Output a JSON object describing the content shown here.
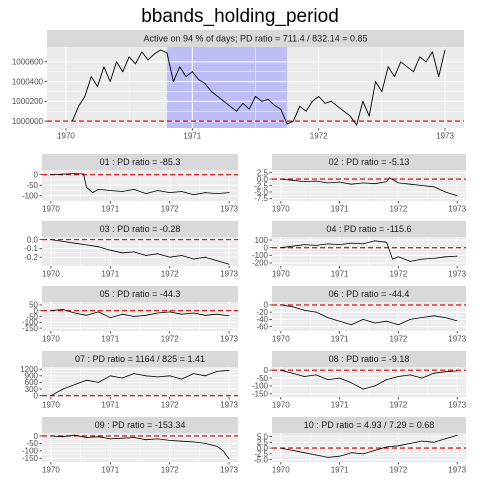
{
  "page_title": "bbands_holding_period",
  "colors": {
    "panel_bg": "#ebebeb",
    "strip_bg": "#d9d9d9",
    "grid_major": "#ffffff",
    "series": "#000000",
    "zero_line": "#cc0000",
    "highlight": "#9999ff"
  },
  "chart_data": [
    {
      "id": "main",
      "type": "line",
      "strip": "Active on 94 % of days; PD ratio =  711.4 / 832.14 = 0.85",
      "x_ticks": [
        "1970",
        "1971",
        "1972",
        "1973"
      ],
      "xlim": [
        1969.85,
        1973.15
      ],
      "y_ticks": [
        1000000,
        1000200,
        1000400,
        1000600
      ],
      "y_tick_labels": [
        "1000000",
        "1000200",
        "1000400",
        "1000600"
      ],
      "ylim": [
        999930,
        1000750
      ],
      "reference_y": 1000000,
      "highlight_x": [
        1970.8,
        1971.75
      ],
      "x": [
        1970.05,
        1970.1,
        1970.15,
        1970.2,
        1970.25,
        1970.3,
        1970.35,
        1970.4,
        1970.45,
        1970.5,
        1970.55,
        1970.6,
        1970.65,
        1970.7,
        1970.75,
        1970.8,
        1970.85,
        1970.9,
        1970.95,
        1971.0,
        1971.05,
        1971.1,
        1971.15,
        1971.2,
        1971.25,
        1971.3,
        1971.35,
        1971.4,
        1971.45,
        1971.5,
        1971.55,
        1971.6,
        1971.65,
        1971.7,
        1971.75,
        1971.8,
        1971.85,
        1971.9,
        1971.95,
        1972.0,
        1972.05,
        1972.1,
        1972.15,
        1972.2,
        1972.25,
        1972.3,
        1972.35,
        1972.4,
        1972.45,
        1972.5,
        1972.55,
        1972.6,
        1972.65,
        1972.7,
        1972.75,
        1972.8,
        1972.85,
        1972.9,
        1972.95,
        1973.0
      ],
      "y": [
        1000000,
        1000150,
        1000250,
        1000450,
        1000350,
        1000550,
        1000400,
        1000600,
        1000500,
        1000650,
        1000580,
        1000700,
        1000620,
        1000680,
        1000720,
        1000690,
        1000400,
        1000550,
        1000450,
        1000500,
        1000420,
        1000380,
        1000300,
        1000250,
        1000200,
        1000150,
        1000100,
        1000180,
        1000120,
        1000250,
        1000200,
        1000220,
        1000160,
        1000120,
        999970,
        1000000,
        1000150,
        1000100,
        1000200,
        1000250,
        1000180,
        1000200,
        1000150,
        1000100,
        1000050,
        999960,
        1000200,
        1000050,
        1000400,
        1000300,
        1000550,
        1000450,
        1000600,
        1000550,
        1000500,
        1000650,
        1000600,
        1000700,
        1000450,
        1000720
      ]
    },
    {
      "id": "p01",
      "type": "line",
      "strip": "01 : PD ratio =  -85.3",
      "x_ticks": [
        "1970",
        "1971",
        "1972",
        "1973"
      ],
      "xlim": [
        1969.85,
        1973.15
      ],
      "y_ticks": [
        0,
        -50,
        -100
      ],
      "y_tick_labels": [
        "0",
        "-50",
        "-100"
      ],
      "ylim": [
        -125,
        22
      ],
      "reference_y": 0,
      "x": [
        1970.0,
        1970.2,
        1970.4,
        1970.55,
        1970.6,
        1970.7,
        1970.8,
        1971.0,
        1971.2,
        1971.4,
        1971.6,
        1971.8,
        1972.0,
        1972.2,
        1972.4,
        1972.6,
        1972.8,
        1973.0
      ],
      "y": [
        0,
        2,
        5,
        3,
        -60,
        -85,
        -70,
        -75,
        -80,
        -70,
        -90,
        -75,
        -85,
        -80,
        -95,
        -85,
        -90,
        -85
      ]
    },
    {
      "id": "p02",
      "type": "line",
      "strip": "02 : PD ratio =  -5.13",
      "x_ticks": [
        "1970",
        "1971",
        "1972",
        "1973"
      ],
      "xlim": [
        1969.85,
        1973.15
      ],
      "y_ticks": [
        2.5,
        0.0,
        -2.5,
        -5.0,
        -7.5
      ],
      "y_tick_labels": [
        "2.5",
        "0.0",
        "-2.5",
        "-5.0",
        "-7.5"
      ],
      "ylim": [
        -8.5,
        3.5
      ],
      "reference_y": 0,
      "x": [
        1970.0,
        1970.2,
        1970.4,
        1970.6,
        1970.8,
        1971.0,
        1971.2,
        1971.4,
        1971.6,
        1971.8,
        1971.85,
        1972.0,
        1972.2,
        1972.4,
        1972.6,
        1972.8,
        1973.0
      ],
      "y": [
        0,
        -0.5,
        -1.0,
        -0.8,
        -1.5,
        -1.2,
        -2.0,
        -1.5,
        -1.8,
        -1.0,
        0.5,
        -1.5,
        -2.0,
        -2.5,
        -3.0,
        -5.0,
        -6.5
      ]
    },
    {
      "id": "p03",
      "type": "line",
      "strip": "03 : PD ratio =  -0.28",
      "x_ticks": [
        "1970",
        "1971",
        "1972",
        "1973"
      ],
      "xlim": [
        1969.85,
        1973.15
      ],
      "y_ticks": [
        0.0,
        -0.1,
        -0.2
      ],
      "y_tick_labels": [
        "0.0",
        "-0.1",
        "-0.2"
      ],
      "ylim": [
        -0.3,
        0.03
      ],
      "reference_y": 0,
      "x": [
        1970.0,
        1970.2,
        1970.4,
        1970.6,
        1970.8,
        1971.0,
        1971.2,
        1971.4,
        1971.6,
        1971.8,
        1972.0,
        1972.2,
        1972.4,
        1972.6,
        1972.8,
        1973.0
      ],
      "y": [
        0,
        -0.02,
        -0.04,
        -0.06,
        -0.08,
        -0.12,
        -0.15,
        -0.14,
        -0.18,
        -0.16,
        -0.2,
        -0.18,
        -0.22,
        -0.2,
        -0.24,
        -0.28
      ]
    },
    {
      "id": "p04",
      "type": "line",
      "strip": "04 : PD ratio =  -115.6",
      "x_ticks": [
        "1970",
        "1971",
        "1972",
        "1973"
      ],
      "xlim": [
        1969.85,
        1973.15
      ],
      "y_ticks": [
        100,
        0,
        -100,
        -200
      ],
      "y_tick_labels": [
        "100",
        "0",
        "-100",
        "-200"
      ],
      "ylim": [
        -240,
        140
      ],
      "reference_y": 0,
      "x": [
        1970.0,
        1970.2,
        1970.4,
        1970.6,
        1970.8,
        1971.0,
        1971.2,
        1971.4,
        1971.6,
        1971.8,
        1971.9,
        1972.0,
        1972.2,
        1972.4,
        1972.6,
        1972.8,
        1973.0
      ],
      "y": [
        0,
        20,
        40,
        30,
        50,
        40,
        60,
        50,
        90,
        70,
        -150,
        -120,
        -180,
        -150,
        -140,
        -120,
        -110
      ]
    },
    {
      "id": "p05",
      "type": "line",
      "strip": "05 : PD ratio =  -44.3",
      "x_ticks": [
        "1970",
        "1971",
        "1972",
        "1973"
      ],
      "xlim": [
        1969.85,
        1973.15
      ],
      "y_ticks": [
        50,
        0,
        -50,
        -100,
        -150
      ],
      "y_tick_labels": [
        "50",
        "0",
        "-50",
        "-100",
        "-150"
      ],
      "ylim": [
        -175,
        75
      ],
      "reference_y": 0,
      "x": [
        1970.0,
        1970.2,
        1970.4,
        1970.6,
        1970.8,
        1971.0,
        1971.2,
        1971.4,
        1971.6,
        1971.8,
        1972.0,
        1972.2,
        1972.4,
        1972.6,
        1972.8,
        1973.0
      ],
      "y": [
        0,
        10,
        -20,
        -40,
        -10,
        -60,
        -30,
        -50,
        -40,
        -20,
        -10,
        -30,
        -20,
        -40,
        -30,
        -45
      ]
    },
    {
      "id": "p06",
      "type": "line",
      "strip": "06 : PD ratio =  -44.4",
      "x_ticks": [
        "1970",
        "1971",
        "1972",
        "1973"
      ],
      "xlim": [
        1969.85,
        1973.15
      ],
      "y_ticks": [
        0,
        -20,
        -40,
        -60
      ],
      "y_tick_labels": [
        "0",
        "-20",
        "-40",
        "-60"
      ],
      "ylim": [
        -72,
        8
      ],
      "reference_y": 0,
      "x": [
        1970.0,
        1970.2,
        1970.4,
        1970.6,
        1970.8,
        1971.0,
        1971.2,
        1971.4,
        1971.6,
        1971.8,
        1972.0,
        1972.2,
        1972.4,
        1972.6,
        1972.8,
        1973.0
      ],
      "y": [
        0,
        -5,
        -15,
        -20,
        -35,
        -45,
        -55,
        -40,
        -50,
        -45,
        -55,
        -40,
        -35,
        -30,
        -35,
        -44
      ]
    },
    {
      "id": "p07",
      "type": "line",
      "strip": "07 : PD ratio =  1164 / 825 = 1.41",
      "x_ticks": [
        "1970",
        "1971",
        "1972",
        "1973"
      ],
      "xlim": [
        1969.85,
        1973.15
      ],
      "y_ticks": [
        1200,
        900,
        600,
        300,
        0
      ],
      "y_tick_labels": [
        "1200",
        "900",
        "600",
        "300",
        "0"
      ],
      "ylim": [
        -60,
        1300
      ],
      "reference_y": 0,
      "x": [
        1970.0,
        1970.2,
        1970.4,
        1970.6,
        1970.8,
        1971.0,
        1971.2,
        1971.4,
        1971.6,
        1971.8,
        1972.0,
        1972.2,
        1972.4,
        1972.6,
        1972.8,
        1973.0
      ],
      "y": [
        0,
        300,
        500,
        700,
        600,
        900,
        800,
        1000,
        900,
        850,
        900,
        750,
        1000,
        900,
        1100,
        1150
      ]
    },
    {
      "id": "p08",
      "type": "line",
      "strip": "08 : PD ratio =  -9.18",
      "x_ticks": [
        "1970",
        "1971",
        "1972",
        "1973"
      ],
      "xlim": [
        1969.85,
        1973.15
      ],
      "y_ticks": [
        0,
        -50,
        -100,
        -150
      ],
      "y_tick_labels": [
        "0",
        "-50",
        "-100",
        "-150"
      ],
      "ylim": [
        -170,
        20
      ],
      "reference_y": 0,
      "x": [
        1970.0,
        1970.2,
        1970.4,
        1970.6,
        1970.8,
        1971.0,
        1971.2,
        1971.4,
        1971.6,
        1971.8,
        1972.0,
        1972.2,
        1972.4,
        1972.6,
        1972.8,
        1973.0
      ],
      "y": [
        0,
        -20,
        -40,
        -30,
        -60,
        -50,
        -80,
        -120,
        -100,
        -60,
        -40,
        -30,
        -50,
        -20,
        -10,
        -5
      ]
    },
    {
      "id": "p09",
      "type": "line",
      "strip": "09 : PD ratio =  -153.34",
      "x_ticks": [
        "1970",
        "1971",
        "1972",
        "1973"
      ],
      "xlim": [
        1969.85,
        1973.15
      ],
      "y_ticks": [
        0,
        -50,
        -100,
        -150
      ],
      "y_tick_labels": [
        "0",
        "-50",
        "-100",
        "-150"
      ],
      "ylim": [
        -175,
        20
      ],
      "reference_y": 0,
      "x": [
        1970.0,
        1970.2,
        1970.4,
        1970.6,
        1970.8,
        1971.0,
        1971.2,
        1971.4,
        1971.6,
        1971.8,
        1972.0,
        1972.2,
        1972.4,
        1972.6,
        1972.8,
        1972.9,
        1973.0
      ],
      "y": [
        0,
        -5,
        5,
        -10,
        -5,
        -20,
        -15,
        -10,
        -25,
        -20,
        -30,
        -35,
        -40,
        -50,
        -70,
        -100,
        -155
      ]
    },
    {
      "id": "p10",
      "type": "line",
      "strip": "10 : PD ratio =  4.93 / 7.29 = 0.68",
      "x_ticks": [
        "1970",
        "1971",
        "1972",
        "1973"
      ],
      "xlim": [
        1969.85,
        1973.15
      ],
      "y_ticks": [
        5.0,
        2.5,
        0.0,
        -2.5,
        -5.0
      ],
      "y_tick_labels": [
        "5.0",
        "2.5",
        "0.0",
        "-2.5",
        "-5.0"
      ],
      "ylim": [
        -6,
        6.5
      ],
      "reference_y": 0,
      "x": [
        1970.0,
        1970.2,
        1970.4,
        1970.6,
        1970.8,
        1971.0,
        1971.2,
        1971.4,
        1971.6,
        1971.8,
        1972.0,
        1972.2,
        1972.4,
        1972.6,
        1972.8,
        1973.0
      ],
      "y": [
        0,
        -1.0,
        -2.0,
        -3.0,
        -4.0,
        -3.5,
        -2.0,
        -2.5,
        -1.0,
        0.5,
        1.0,
        2.0,
        3.0,
        2.5,
        4.0,
        5.5
      ]
    }
  ]
}
